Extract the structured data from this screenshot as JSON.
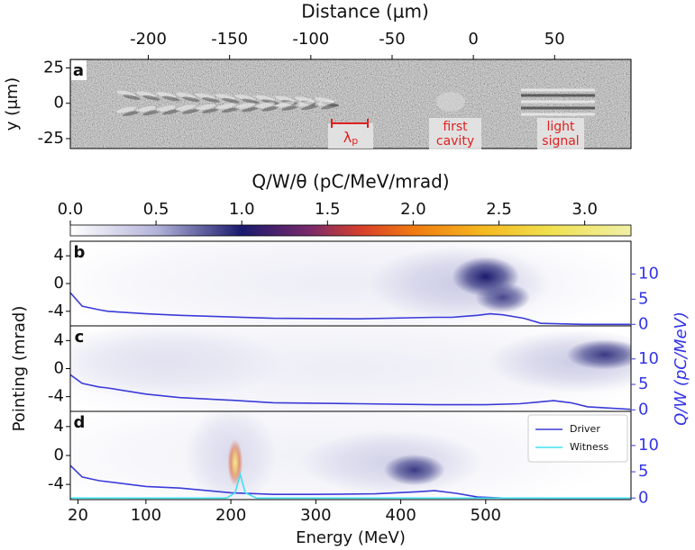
{
  "chart_data": [
    {
      "type": "image",
      "panel": "a",
      "x_label": "Distance (μm)",
      "y_label": "y (μm)",
      "xlim": [
        -248,
        97
      ],
      "xticks": [
        -200,
        -150,
        -100,
        -50,
        0,
        50
      ],
      "ylim": [
        -32,
        31
      ],
      "yticks": [
        25,
        0,
        -25
      ],
      "annotations": [
        {
          "text": "λ",
          "subscript": "p"
        },
        {
          "lines": [
            "first",
            "cavity"
          ]
        },
        {
          "lines": [
            "light",
            "signal"
          ]
        }
      ]
    },
    {
      "type": "colorbar",
      "label": "Q/W/θ (pC/MeV/mrad)",
      "xlim": [
        0,
        3.27
      ],
      "xticks": [
        {
          "value": 0,
          "label": "0.0"
        },
        0.5,
        {
          "value": 1,
          "label": "1.0"
        },
        1.5,
        {
          "value": 2,
          "label": "2.0"
        },
        2.5,
        {
          "value": 3,
          "label": "3.0"
        }
      ],
      "colormap": [
        {
          "value": 0,
          "color": "#ffffff"
        },
        {
          "value": 0.5,
          "color": "#b4b4da"
        },
        {
          "value": 1.0,
          "color": "#1a1a6e"
        },
        {
          "value": 1.4,
          "color": "#7a2a6a"
        },
        {
          "value": 1.7,
          "color": "#d8402a"
        },
        {
          "value": 2.0,
          "color": "#f07a10"
        },
        {
          "value": 2.4,
          "color": "#f5b820"
        },
        {
          "value": 2.8,
          "color": "#f0e050"
        },
        {
          "value": 3.27,
          "color": "#f0f0a8"
        }
      ]
    },
    {
      "type": "heatmap",
      "panel": "b",
      "xlim": [
        11,
        671
      ],
      "ylim": [
        -6.1,
        6.1
      ],
      "yticks": [
        4,
        0,
        -4
      ],
      "y2lim": [
        -0.3,
        16.5
      ],
      "y2ticks": [
        0,
        5,
        10
      ],
      "y2color": "#3535e8",
      "hotspots": [
        {
          "energy": 330,
          "pointing": 0,
          "density": 0.12,
          "sigma_energy": 200,
          "sigma_pointing": 5
        },
        {
          "energy": 470,
          "pointing": 0,
          "density": 0.35,
          "sigma_energy": 60,
          "sigma_pointing": 3
        },
        {
          "energy": 500,
          "pointing": 1,
          "density": 1.0,
          "sigma_energy": 22,
          "sigma_pointing": 1.6
        },
        {
          "energy": 520,
          "pointing": -2,
          "density": 0.85,
          "sigma_energy": 18,
          "sigma_pointing": 1.2
        }
      ],
      "series": [
        {
          "color": "#3b3bd9",
          "axis": "y2",
          "x": [
            11,
            25,
            45,
            55,
            100,
            140,
            250,
            350,
            440,
            460,
            490,
            505,
            520,
            545,
            565,
            615,
            670
          ],
          "values": [
            6.3,
            3.6,
            2.9,
            2.6,
            2.1,
            1.8,
            1.2,
            1.1,
            1.4,
            1.4,
            1.8,
            2.1,
            1.9,
            1.2,
            0.2,
            0,
            0
          ]
        }
      ]
    },
    {
      "type": "heatmap",
      "panel": "c",
      "y_label": "Pointing (mrad)",
      "y2_label": "Q/W (pC/MeV)",
      "xlim": [
        11,
        671
      ],
      "ylim": [
        -6.1,
        6.1
      ],
      "yticks": [
        4,
        0,
        -4
      ],
      "y2lim": [
        -0.3,
        16.5
      ],
      "y2ticks": [
        0,
        5,
        10
      ],
      "y2color": "#3535e8",
      "hotspots": [
        {
          "energy": 330,
          "pointing": 0,
          "density": 0.12,
          "sigma_energy": 220,
          "sigma_pointing": 5
        },
        {
          "energy": 120,
          "pointing": 1,
          "density": 0.2,
          "sigma_energy": 80,
          "sigma_pointing": 3
        },
        {
          "energy": 610,
          "pointing": 1,
          "density": 0.35,
          "sigma_energy": 60,
          "sigma_pointing": 2.5
        },
        {
          "energy": 640,
          "pointing": 2,
          "density": 0.9,
          "sigma_energy": 25,
          "sigma_pointing": 1.2
        }
      ],
      "series": [
        {
          "color": "#3b3bd9",
          "axis": "y2",
          "x": [
            11,
            25,
            45,
            55,
            100,
            140,
            200,
            250,
            350,
            440,
            500,
            540,
            560,
            580,
            600,
            620,
            670
          ],
          "values": [
            6.9,
            5.2,
            4.5,
            4.3,
            3.1,
            2.4,
            1.9,
            1.4,
            1.2,
            1.0,
            1.0,
            1.2,
            1.5,
            1.8,
            1.4,
            0.6,
            0.1
          ]
        }
      ]
    },
    {
      "type": "heatmap",
      "panel": "d",
      "x_label": "Energy (MeV)",
      "xlim": [
        11,
        671
      ],
      "xticks": [
        20,
        100,
        200,
        300,
        400,
        500
      ],
      "ylim": [
        -6.1,
        6.1
      ],
      "yticks": [
        4,
        0,
        -4
      ],
      "y2lim": [
        -0.3,
        16.5
      ],
      "y2ticks": [
        0,
        5,
        10
      ],
      "y2color": "#3535e8",
      "legend": "upper right",
      "hotspots": [
        {
          "energy": 300,
          "pointing": 0,
          "density": 0.1,
          "sigma_energy": 200,
          "sigma_pointing": 5
        },
        {
          "energy": 200,
          "pointing": 0,
          "density": 0.25,
          "sigma_energy": 30,
          "sigma_pointing": 4
        },
        {
          "energy": 390,
          "pointing": -1,
          "density": 0.3,
          "sigma_energy": 60,
          "sigma_pointing": 2.5
        },
        {
          "energy": 416,
          "pointing": -2,
          "density": 0.9,
          "sigma_energy": 20,
          "sigma_pointing": 1.2
        },
        {
          "energy": 205,
          "pointing": -1,
          "density": 1.8,
          "sigma_energy": 5,
          "sigma_pointing": 1.8
        },
        {
          "energy": 205,
          "pointing": -1,
          "density": 3.2,
          "sigma_energy": 3,
          "sigma_pointing": 1.3
        }
      ],
      "series": [
        {
          "name": "Driver",
          "color": "#3b3bd9",
          "axis": "y2",
          "x": [
            11,
            25,
            45,
            100,
            140,
            200,
            250,
            300,
            370,
            420,
            440,
            465,
            490,
            520,
            670
          ],
          "values": [
            6.2,
            4,
            3.3,
            2.2,
            1.9,
            1.0,
            0.7,
            0.7,
            0.8,
            1.2,
            1.4,
            0.9,
            0.2,
            0,
            0
          ]
        },
        {
          "name": "Witness",
          "color": "#40e0f0",
          "axis": "y2",
          "x": [
            11,
            195,
            205,
            211,
            217,
            230,
            670
          ],
          "values": [
            0,
            0,
            1,
            4.5,
            1,
            0,
            0
          ]
        }
      ]
    }
  ]
}
